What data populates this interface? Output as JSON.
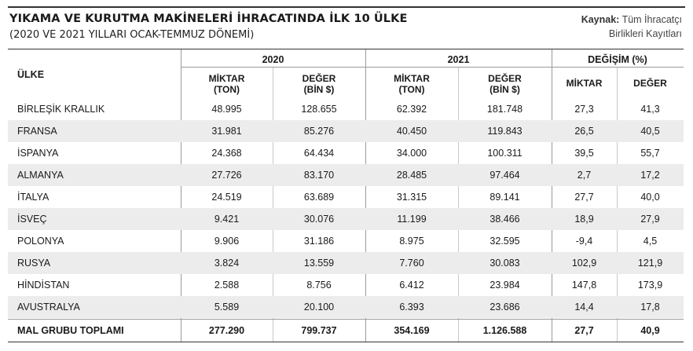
{
  "title": "YIKAMA VE KURUTMA MAKİNELERİ İHRACATINDA İLK 10 ÜLKE",
  "subtitle": "(2020 VE 2021 YILLARI OCAK-TEMMUZ DÖNEMİ)",
  "source": {
    "label": "Kaynak:",
    "line1": "Tüm İhracatçı",
    "line2": "Birlikleri Kayıtları"
  },
  "table": {
    "country_header": "ÜLKE",
    "groups": [
      "2020",
      "2021",
      "DEĞİŞİM (%)"
    ],
    "subheaders": [
      {
        "l1": "MİKTAR",
        "l2": "(TON)"
      },
      {
        "l1": "DEĞER",
        "l2": "(BİN $)"
      },
      {
        "l1": "MİKTAR",
        "l2": "(TON)"
      },
      {
        "l1": "DEĞER",
        "l2": "(BİN $)"
      },
      {
        "l1": "MİKTAR",
        "l2": ""
      },
      {
        "l1": "DEĞER",
        "l2": ""
      }
    ],
    "rows": [
      [
        "BİRLEŞİK KRALLIK",
        "48.995",
        "128.655",
        "62.392",
        "181.748",
        "27,3",
        "41,3"
      ],
      [
        "FRANSA",
        "31.981",
        "85.276",
        "40.450",
        "119.843",
        "26,5",
        "40,5"
      ],
      [
        "İSPANYA",
        "24.368",
        "64.434",
        "34.000",
        "100.311",
        "39,5",
        "55,7"
      ],
      [
        "ALMANYA",
        "27.726",
        "83.170",
        "28.485",
        "97.464",
        "2,7",
        "17,2"
      ],
      [
        "İTALYA",
        "24.519",
        "63.689",
        "31.315",
        "89.141",
        "27,7",
        "40,0"
      ],
      [
        "İSVEÇ",
        "9.421",
        "30.076",
        "11.199",
        "38.466",
        "18,9",
        "27,9"
      ],
      [
        "POLONYA",
        "9.906",
        "31.186",
        "8.975",
        "32.595",
        "-9,4",
        "4,5"
      ],
      [
        "RUSYA",
        "3.824",
        "13.559",
        "7.760",
        "30.083",
        "102,9",
        "121,9"
      ],
      [
        "HİNDİSTAN",
        "2.588",
        "8.756",
        "6.412",
        "23.984",
        "147,8",
        "173,9"
      ],
      [
        "AVUSTRALYA",
        "5.589",
        "20.100",
        "6.393",
        "23.686",
        "14,4",
        "17,8"
      ]
    ],
    "total": [
      "MAL GRUBU TOPLAMI",
      "277.290",
      "799.737",
      "354.169",
      "1.126.588",
      "27,7",
      "40,9"
    ]
  }
}
